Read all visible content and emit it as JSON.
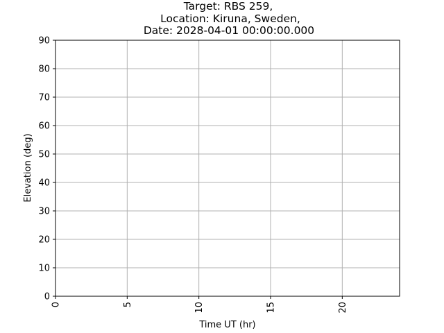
{
  "chart_data": {
    "type": "line",
    "title_lines": [
      "Target: RBS 259,",
      "Location: Kiruna, Sweden,",
      "Date: 2028-04-01 00:00:00.000"
    ],
    "xlabel": "Time UT (hr)",
    "ylabel": "Elevation (deg)",
    "xlim": [
      0,
      24
    ],
    "ylim": [
      0,
      90
    ],
    "xticks": [
      0,
      5,
      10,
      15,
      20
    ],
    "yticks": [
      0,
      10,
      20,
      30,
      40,
      50,
      60,
      70,
      80,
      90
    ],
    "xtick_rotation": "vertical",
    "grid": true,
    "series": []
  },
  "colors": {
    "grid": "#b0b0b0",
    "axes": "#000000",
    "background": "#ffffff"
  }
}
